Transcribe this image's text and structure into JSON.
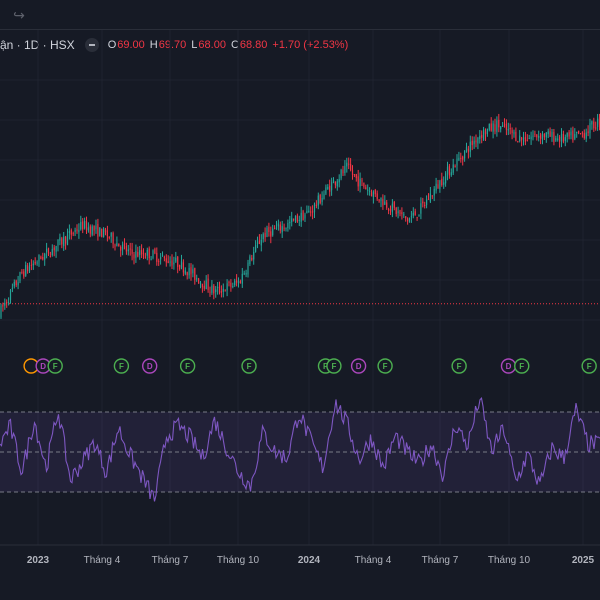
{
  "toolbar": {
    "redo_icon": "↪"
  },
  "legend": {
    "symbol_text": "ận · 1D · HSX",
    "open_label": "O",
    "open_value": "69.00",
    "high_label": "H",
    "high_value": "69.70",
    "low_label": "L",
    "low_value": "68.00",
    "close_label": "C",
    "close_value": "68.80",
    "change": "+1.70 (+2.53%)"
  },
  "colors": {
    "background": "#161a25",
    "up": "#26a69a",
    "down": "#f23645",
    "rsi_line": "#7e57c2",
    "rsi_band": "rgba(126,87,194,0.12)",
    "dividend_event": "#ab47bc",
    "earnings_event": "#4caf50",
    "split_event": "#ff9800"
  },
  "chart_data": {
    "type": "candlestick",
    "interval": "1D",
    "exchange": "HSX",
    "x_axis_labels": [
      "2023",
      "Tháng 4",
      "Tháng 7",
      "Tháng 10",
      "2024",
      "Tháng 4",
      "Tháng 7",
      "Tháng 10",
      "2025"
    ],
    "x_axis_bold": [
      "2023",
      "2024",
      "2025"
    ],
    "price_path": [
      [
        0,
        48
      ],
      [
        4,
        57
      ],
      [
        9,
        62
      ],
      [
        14,
        67
      ],
      [
        18,
        65
      ],
      [
        22,
        61
      ],
      [
        25,
        61
      ],
      [
        30,
        59
      ],
      [
        36,
        53
      ],
      [
        40,
        55
      ],
      [
        44,
        65
      ],
      [
        48,
        67
      ],
      [
        52,
        70
      ],
      [
        55,
        75
      ],
      [
        58,
        79
      ],
      [
        60,
        76
      ],
      [
        64,
        72
      ],
      [
        68,
        68
      ],
      [
        70,
        70
      ],
      [
        74,
        77
      ],
      [
        78,
        83
      ],
      [
        80,
        86
      ],
      [
        83,
        88
      ],
      [
        87,
        85
      ],
      [
        90,
        86
      ],
      [
        94,
        85
      ],
      [
        97,
        86
      ],
      [
        100,
        89
      ],
      [
        102,
        99
      ],
      [
        104,
        95
      ],
      [
        107,
        91
      ],
      [
        110,
        85
      ],
      [
        113,
        80
      ],
      [
        116,
        77
      ],
      [
        120,
        76
      ],
      [
        124,
        77
      ],
      [
        127,
        80
      ],
      [
        130,
        79
      ]
    ],
    "price_range": [
      45,
      102
    ],
    "last_close": 68.8,
    "price_line": 50.5,
    "events": [
      {
        "type": "split",
        "label": "",
        "x": 5.5
      },
      {
        "type": "dividend",
        "label": "D",
        "x": 7.5
      },
      {
        "type": "earnings",
        "label": "F",
        "x": 9.5
      },
      {
        "type": "earnings",
        "label": "F",
        "x": 20.5
      },
      {
        "type": "dividend",
        "label": "D",
        "x": 25.2
      },
      {
        "type": "earnings",
        "label": "F",
        "x": 31.5
      },
      {
        "type": "earnings",
        "label": "F",
        "x": 41.7
      },
      {
        "type": "earnings",
        "label": "F",
        "x": 54.4
      },
      {
        "type": "earnings",
        "label": "F",
        "x": 55.8
      },
      {
        "type": "dividend",
        "label": "D",
        "x": 59.9
      },
      {
        "type": "earnings",
        "label": "F",
        "x": 64.3
      },
      {
        "type": "earnings",
        "label": "F",
        "x": 76.6
      },
      {
        "type": "dividend",
        "label": "D",
        "x": 84.8
      },
      {
        "type": "earnings",
        "label": "F",
        "x": 87.0
      },
      {
        "type": "earnings",
        "label": "F",
        "x": 98.2
      }
    ],
    "rsi": {
      "range": [
        20,
        80
      ],
      "levels": [
        70,
        50,
        30
      ],
      "path": [
        [
          0,
          52
        ],
        [
          2,
          63
        ],
        [
          4,
          40
        ],
        [
          6,
          66
        ],
        [
          8,
          42
        ],
        [
          10,
          71
        ],
        [
          12,
          36
        ],
        [
          14,
          45
        ],
        [
          16,
          55
        ],
        [
          18,
          40
        ],
        [
          20,
          62
        ],
        [
          22,
          48
        ],
        [
          24,
          37
        ],
        [
          26,
          26
        ],
        [
          28,
          58
        ],
        [
          30,
          63
        ],
        [
          32,
          57
        ],
        [
          34,
          47
        ],
        [
          36,
          66
        ],
        [
          38,
          52
        ],
        [
          40,
          40
        ],
        [
          42,
          33
        ],
        [
          44,
          60
        ],
        [
          46,
          50
        ],
        [
          48,
          47
        ],
        [
          50,
          70
        ],
        [
          52,
          55
        ],
        [
          54,
          42
        ],
        [
          56,
          75
        ],
        [
          58,
          64
        ],
        [
          60,
          46
        ],
        [
          62,
          57
        ],
        [
          64,
          42
        ],
        [
          66,
          58
        ],
        [
          68,
          50
        ],
        [
          70,
          44
        ],
        [
          72,
          54
        ],
        [
          74,
          38
        ],
        [
          76,
          64
        ],
        [
          78,
          53
        ],
        [
          80,
          77
        ],
        [
          82,
          50
        ],
        [
          84,
          62
        ],
        [
          86,
          35
        ],
        [
          88,
          49
        ],
        [
          90,
          33
        ],
        [
          92,
          52
        ],
        [
          94,
          47
        ],
        [
          96,
          71
        ],
        [
          98,
          54
        ]
      ]
    }
  }
}
